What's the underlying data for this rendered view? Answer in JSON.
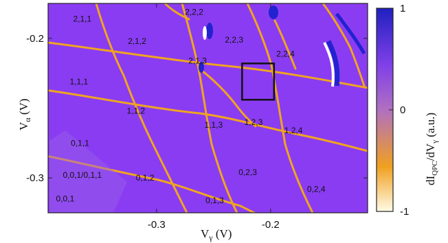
{
  "chart_data": {
    "type": "heatmap",
    "title": "",
    "xlabel": {
      "main": "V",
      "sub": "γ",
      "unit": "(V)"
    },
    "ylabel": {
      "main": "V",
      "sub": "α",
      "unit": "(V)"
    },
    "x_ticks": [
      {
        "value": -0.3,
        "label": "-0.3"
      },
      {
        "value": -0.2,
        "label": "-0.2"
      }
    ],
    "y_ticks": [
      {
        "value": -0.2,
        "label": "-0.2"
      },
      {
        "value": -0.3,
        "label": "-0.3"
      }
    ],
    "xlim": [
      -0.395,
      -0.115
    ],
    "ylim": [
      -0.325,
      -0.175
    ],
    "colorbar": {
      "range": [
        -1,
        1
      ],
      "ticks": [
        {
          "value": 1,
          "label": "1"
        },
        {
          "value": 0,
          "label": "0"
        },
        {
          "value": -1,
          "label": "-1"
        }
      ],
      "label": {
        "main": "dI",
        "sub1": "QPC",
        "mid": "/dV",
        "sub2": "γ",
        "unit": "(a.u.)"
      },
      "colors": [
        "#fffbe6",
        "#f0a020",
        "#b070c0",
        "#8040e8",
        "#2020c0"
      ]
    },
    "background_color": "#8a3cf2",
    "line_color": "#f0a520",
    "state_labels": [
      {
        "text": "2,1,1",
        "x": -0.365,
        "y": -0.188
      },
      {
        "text": "2,1,2",
        "x": -0.317,
        "y": -0.204
      },
      {
        "text": "2,2,2",
        "x": -0.267,
        "y": -0.183
      },
      {
        "text": "2,2,3",
        "x": -0.232,
        "y": -0.203
      },
      {
        "text": "2,1,3",
        "x": -0.264,
        "y": -0.218
      },
      {
        "text": "2,2,4",
        "x": -0.187,
        "y": -0.213
      },
      {
        "text": "1,1,1",
        "x": -0.368,
        "y": -0.233
      },
      {
        "text": "1,1,2",
        "x": -0.318,
        "y": -0.254
      },
      {
        "text": "1,1,3",
        "x": -0.25,
        "y": -0.264
      },
      {
        "text": "1,2,3",
        "x": -0.215,
        "y": -0.262
      },
      {
        "text": "1,2,4",
        "x": -0.18,
        "y": -0.268
      },
      {
        "text": "0,1,1",
        "x": -0.367,
        "y": -0.277
      },
      {
        "text": "0,0,1",
        "x": -0.38,
        "y": -0.317
      },
      {
        "text": "0,0,1/0,1,1",
        "x": -0.365,
        "y": -0.3
      },
      {
        "text": "0,1,2",
        "x": -0.31,
        "y": -0.302
      },
      {
        "text": "0,2,3",
        "x": -0.22,
        "y": -0.298
      },
      {
        "text": "0,2,4",
        "x": -0.16,
        "y": -0.31
      },
      {
        "text": "0,1,3",
        "x": -0.249,
        "y": -0.318
      }
    ],
    "highlight_box": {
      "x_range": [
        -0.225,
        -0.197
      ],
      "y_range": [
        -0.218,
        -0.244
      ]
    }
  }
}
